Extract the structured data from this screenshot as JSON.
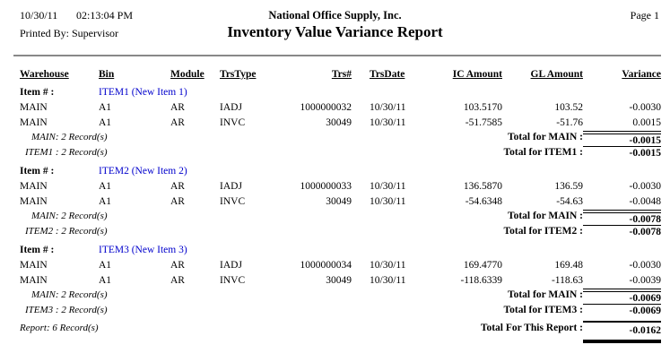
{
  "header": {
    "date": "10/30/11",
    "time": "02:13:04 PM",
    "company": "National Office Supply, Inc.",
    "page_label": "Page 1",
    "printed_by": "Printed By: Supervisor",
    "title": "Inventory Value Variance Report"
  },
  "columns": {
    "warehouse": "Warehouse",
    "bin": "Bin",
    "module": "Module",
    "trstype": "TrsType",
    "trsnum": "Trs#",
    "trsdate": "TrsDate",
    "ic": "IC Amount",
    "gl": "GL Amount",
    "variance": "Variance"
  },
  "item_label": "Item # :",
  "groups": [
    {
      "item": "ITEM1 (New Item 1)",
      "rows": [
        {
          "warehouse": "MAIN",
          "bin": "A1",
          "module": "AR",
          "trstype": "IADJ",
          "trsnum": "1000000032",
          "trsdate": "10/30/11",
          "ic": "103.5170",
          "gl": "103.52",
          "variance": "-0.0030"
        },
        {
          "warehouse": "MAIN",
          "bin": "A1",
          "module": "AR",
          "trstype": "INVC",
          "trsnum": "30049",
          "trsdate": "10/30/11",
          "ic": "-51.7585",
          "gl": "-51.76",
          "variance": "0.0015"
        }
      ],
      "wh_summary": "MAIN: 2 Record(s)",
      "wh_total_label": "Total for MAIN :",
      "wh_total": "-0.0015",
      "item_summary": "ITEM1 : 2 Record(s)",
      "item_total_label": "Total for ITEM1 :",
      "item_total": "-0.0015"
    },
    {
      "item": "ITEM2 (New Item 2)",
      "rows": [
        {
          "warehouse": "MAIN",
          "bin": "A1",
          "module": "AR",
          "trstype": "IADJ",
          "trsnum": "1000000033",
          "trsdate": "10/30/11",
          "ic": "136.5870",
          "gl": "136.59",
          "variance": "-0.0030"
        },
        {
          "warehouse": "MAIN",
          "bin": "A1",
          "module": "AR",
          "trstype": "INVC",
          "trsnum": "30049",
          "trsdate": "10/30/11",
          "ic": "-54.6348",
          "gl": "-54.63",
          "variance": "-0.0048"
        }
      ],
      "wh_summary": "MAIN: 2 Record(s)",
      "wh_total_label": "Total for MAIN :",
      "wh_total": "-0.0078",
      "item_summary": "ITEM2 : 2 Record(s)",
      "item_total_label": "Total for ITEM2 :",
      "item_total": "-0.0078"
    },
    {
      "item": "ITEM3 (New Item 3)",
      "rows": [
        {
          "warehouse": "MAIN",
          "bin": "A1",
          "module": "AR",
          "trstype": "IADJ",
          "trsnum": "1000000034",
          "trsdate": "10/30/11",
          "ic": "169.4770",
          "gl": "169.48",
          "variance": "-0.0030"
        },
        {
          "warehouse": "MAIN",
          "bin": "A1",
          "module": "AR",
          "trstype": "INVC",
          "trsnum": "30049",
          "trsdate": "10/30/11",
          "ic": "-118.6339",
          "gl": "-118.63",
          "variance": "-0.0039"
        }
      ],
      "wh_summary": "MAIN: 2 Record(s)",
      "wh_total_label": "Total for MAIN :",
      "wh_total": "-0.0069",
      "item_summary": "ITEM3 : 2 Record(s)",
      "item_total_label": "Total for ITEM3 :",
      "item_total": "-0.0069"
    }
  ],
  "footer": {
    "report_summary": "Report: 6 Record(s)",
    "report_total_label": "Total For This Report :",
    "report_total": "-0.0162"
  },
  "colors": {
    "item_link": "#0000cc",
    "separator": "#888888"
  }
}
